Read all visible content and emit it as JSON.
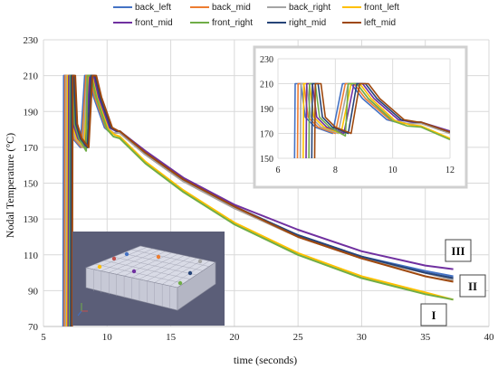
{
  "chart_data": {
    "type": "line",
    "title": "",
    "xlabel": "time (seconds)",
    "ylabel": "Nodal Temperature (°C)",
    "xlim": [
      5,
      40
    ],
    "ylim": [
      70,
      230
    ],
    "xticks": [
      5,
      10,
      15,
      20,
      25,
      30,
      35,
      40
    ],
    "yticks": [
      70,
      90,
      110,
      130,
      150,
      170,
      190,
      210,
      230
    ],
    "grid": true,
    "legend_position": "top",
    "series": [
      {
        "name": "back_left",
        "color": "#4472C4",
        "points": [
          [
            6.55,
            70
          ],
          [
            6.6,
            210
          ],
          [
            6.8,
            210
          ],
          [
            6.95,
            183
          ],
          [
            7.3,
            175
          ],
          [
            7.9,
            170
          ],
          [
            8.25,
            210
          ],
          [
            8.55,
            210
          ],
          [
            8.95,
            198
          ],
          [
            9.8,
            181
          ],
          [
            10.3,
            178
          ],
          [
            11,
            178
          ],
          [
            13,
            166
          ],
          [
            16,
            151
          ],
          [
            20,
            136
          ],
          [
            25,
            121
          ],
          [
            30,
            109
          ],
          [
            35,
            101
          ],
          [
            37.2,
            98
          ]
        ]
      },
      {
        "name": "back_mid",
        "color": "#ED7D31",
        "points": [
          [
            6.65,
            70
          ],
          [
            6.7,
            210
          ],
          [
            6.9,
            210
          ],
          [
            7.05,
            183
          ],
          [
            7.4,
            175
          ],
          [
            8.0,
            170
          ],
          [
            8.35,
            210
          ],
          [
            8.65,
            210
          ],
          [
            9.05,
            198
          ],
          [
            9.9,
            181
          ],
          [
            10.4,
            178
          ],
          [
            11,
            178
          ],
          [
            13,
            166
          ],
          [
            16,
            151
          ],
          [
            20,
            136
          ],
          [
            25,
            120
          ],
          [
            30,
            108
          ],
          [
            35,
            100
          ],
          [
            37.2,
            96
          ]
        ]
      },
      {
        "name": "back_right",
        "color": "#A5A5A5",
        "points": [
          [
            6.75,
            70
          ],
          [
            6.8,
            210
          ],
          [
            7.0,
            210
          ],
          [
            7.15,
            183
          ],
          [
            7.5,
            175
          ],
          [
            8.1,
            170
          ],
          [
            8.45,
            210
          ],
          [
            8.75,
            210
          ],
          [
            9.15,
            198
          ],
          [
            10.0,
            181
          ],
          [
            10.5,
            178
          ],
          [
            11,
            178
          ],
          [
            13,
            166
          ],
          [
            16,
            151
          ],
          [
            20,
            136
          ],
          [
            25,
            120
          ],
          [
            30,
            108
          ],
          [
            35,
            100
          ],
          [
            37.2,
            96
          ]
        ]
      },
      {
        "name": "front_left",
        "color": "#FFC000",
        "points": [
          [
            6.85,
            70
          ],
          [
            6.9,
            210
          ],
          [
            7.1,
            210
          ],
          [
            7.25,
            183
          ],
          [
            7.6,
            175
          ],
          [
            8.2,
            170
          ],
          [
            8.55,
            210
          ],
          [
            8.85,
            210
          ],
          [
            9.25,
            198
          ],
          [
            10.1,
            180
          ],
          [
            10.6,
            177
          ],
          [
            11,
            176
          ],
          [
            13,
            162
          ],
          [
            16,
            146
          ],
          [
            20,
            128
          ],
          [
            25,
            111
          ],
          [
            30,
            98
          ],
          [
            35,
            89
          ],
          [
            37.2,
            85
          ]
        ]
      },
      {
        "name": "front_mid",
        "color": "#7030A0",
        "points": [
          [
            6.95,
            70
          ],
          [
            7.0,
            210
          ],
          [
            7.2,
            210
          ],
          [
            7.35,
            183
          ],
          [
            7.7,
            175
          ],
          [
            8.3,
            170
          ],
          [
            8.65,
            210
          ],
          [
            8.95,
            210
          ],
          [
            9.35,
            198
          ],
          [
            10.2,
            181
          ],
          [
            10.7,
            179
          ],
          [
            11,
            179
          ],
          [
            13,
            168
          ],
          [
            16,
            153
          ],
          [
            20,
            138
          ],
          [
            25,
            124
          ],
          [
            30,
            112
          ],
          [
            35,
            104
          ],
          [
            37.2,
            102
          ]
        ]
      },
      {
        "name": "front_right",
        "color": "#70AD47",
        "points": [
          [
            7.05,
            70
          ],
          [
            7.1,
            210
          ],
          [
            7.3,
            210
          ],
          [
            7.45,
            183
          ],
          [
            7.8,
            175
          ],
          [
            8.35,
            168
          ],
          [
            8.45,
            210
          ],
          [
            8.75,
            210
          ],
          [
            9.15,
            198
          ],
          [
            10.0,
            180
          ],
          [
            10.5,
            176
          ],
          [
            11,
            175
          ],
          [
            13,
            161
          ],
          [
            16,
            145
          ],
          [
            20,
            127
          ],
          [
            25,
            110
          ],
          [
            30,
            97
          ],
          [
            35,
            88
          ],
          [
            37.2,
            85
          ]
        ]
      },
      {
        "name": "right_mid",
        "color": "#264478",
        "points": [
          [
            7.15,
            70
          ],
          [
            7.2,
            210
          ],
          [
            7.4,
            210
          ],
          [
            7.55,
            183
          ],
          [
            7.9,
            175
          ],
          [
            8.45,
            170
          ],
          [
            8.75,
            210
          ],
          [
            9.05,
            210
          ],
          [
            9.45,
            198
          ],
          [
            10.3,
            181
          ],
          [
            10.8,
            179
          ],
          [
            11,
            179
          ],
          [
            13,
            167
          ],
          [
            16,
            152
          ],
          [
            20,
            137
          ],
          [
            25,
            121
          ],
          [
            30,
            109
          ],
          [
            35,
            100
          ],
          [
            37.2,
            97
          ]
        ]
      },
      {
        "name": "left_mid",
        "color": "#9E480E",
        "points": [
          [
            7.25,
            70
          ],
          [
            7.3,
            210
          ],
          [
            7.5,
            210
          ],
          [
            7.65,
            183
          ],
          [
            8.0,
            175
          ],
          [
            8.55,
            170
          ],
          [
            8.85,
            210
          ],
          [
            9.15,
            210
          ],
          [
            9.55,
            198
          ],
          [
            10.4,
            181
          ],
          [
            10.9,
            179
          ],
          [
            11,
            179
          ],
          [
            13,
            167
          ],
          [
            16,
            152
          ],
          [
            20,
            137
          ],
          [
            25,
            120
          ],
          [
            30,
            108
          ],
          [
            35,
            98
          ],
          [
            37.2,
            95
          ]
        ]
      }
    ],
    "inset": {
      "xlim": [
        6,
        12
      ],
      "ylim": [
        150,
        230
      ],
      "xticks": [
        6,
        8,
        10,
        12
      ],
      "yticks": [
        150,
        170,
        190,
        210,
        230
      ]
    },
    "annotations": [
      "III",
      "II",
      "I"
    ]
  }
}
